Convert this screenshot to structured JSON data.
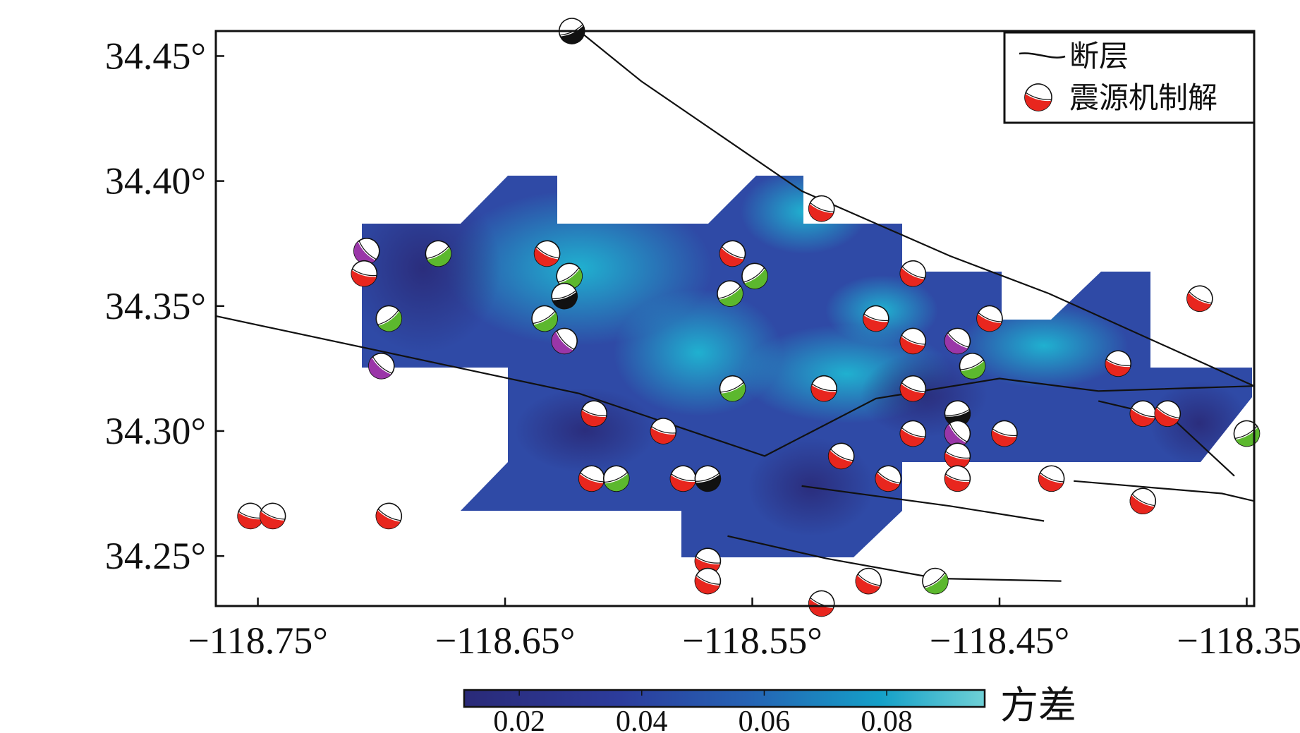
{
  "map": {
    "x_ticks": [
      {
        "label": "−118.75°",
        "value": -118.75
      },
      {
        "label": "−118.65°",
        "value": -118.65
      },
      {
        "label": "−118.55°",
        "value": -118.55
      },
      {
        "label": "−118.45°",
        "value": -118.45
      },
      {
        "label": "−118.35°",
        "value": -118.35
      }
    ],
    "y_ticks": [
      {
        "label": "34.45°",
        "value": 34.45
      },
      {
        "label": "34.40°",
        "value": 34.4
      },
      {
        "label": "34.35°",
        "value": 34.35
      },
      {
        "label": "34.30°",
        "value": 34.3
      },
      {
        "label": "34.25°",
        "value": 34.25
      }
    ],
    "lon_range": [
      -118.767,
      -118.347
    ],
    "lat_range": [
      34.23,
      34.46
    ],
    "legend": {
      "placement": "top-right",
      "fault_label": "断层",
      "mechanism_label": "震源机制解"
    },
    "colorbar": {
      "title": "方差",
      "ticks": [
        "0.02",
        "0.04",
        "0.06",
        "0.08"
      ],
      "tick_values": [
        0.02,
        0.04,
        0.06,
        0.08
      ],
      "range": [
        0.011,
        0.096
      ],
      "colors": [
        "#2a2a78",
        "#2c3c9c",
        "#2563b4",
        "#14a0c8",
        "#6fd0d6"
      ]
    },
    "region_color": "#2f4aa6",
    "region_light_color": "#18a6cc",
    "region_dark_color": "#2a2a7c",
    "fault_color": "#111111",
    "mechanism_colors": {
      "red": "#e8261e",
      "green": "#5cb82e",
      "purple": "#9a36a8",
      "black": "#111111"
    },
    "faults": [
      [
        [
          -118.62,
          34.46
        ],
        [
          -118.595,
          34.44
        ],
        [
          -118.53,
          34.396
        ],
        [
          -118.47,
          34.37
        ],
        [
          -118.43,
          34.355
        ],
        [
          -118.347,
          34.318
        ]
      ],
      [
        [
          -118.767,
          34.346
        ],
        [
          -118.62,
          34.315
        ],
        [
          -118.545,
          34.29
        ],
        [
          -118.5,
          34.313
        ],
        [
          -118.45,
          34.321
        ],
        [
          -118.41,
          34.316
        ],
        [
          -118.347,
          34.318
        ]
      ],
      [
        [
          -118.41,
          34.312
        ],
        [
          -118.38,
          34.305
        ],
        [
          -118.355,
          34.282
        ]
      ],
      [
        [
          -118.42,
          34.28
        ],
        [
          -118.36,
          34.275
        ],
        [
          -118.347,
          34.272
        ]
      ],
      [
        [
          -118.53,
          34.278
        ],
        [
          -118.47,
          34.27
        ],
        [
          -118.432,
          34.264
        ]
      ],
      [
        [
          -118.56,
          34.258
        ],
        [
          -118.52,
          34.249
        ],
        [
          -118.475,
          34.241
        ],
        [
          -118.425,
          34.24
        ]
      ]
    ],
    "mechanisms": [
      {
        "lon": -118.623,
        "lat": 34.46,
        "type": "black"
      },
      {
        "lon": -118.522,
        "lat": 34.389,
        "type": "red"
      },
      {
        "lon": -118.706,
        "lat": 34.372,
        "type": "purple"
      },
      {
        "lon": -118.707,
        "lat": 34.363,
        "type": "red"
      },
      {
        "lon": -118.677,
        "lat": 34.371,
        "type": "green"
      },
      {
        "lon": -118.633,
        "lat": 34.371,
        "type": "red"
      },
      {
        "lon": -118.624,
        "lat": 34.362,
        "type": "green"
      },
      {
        "lon": -118.626,
        "lat": 34.354,
        "type": "black"
      },
      {
        "lon": -118.558,
        "lat": 34.371,
        "type": "red"
      },
      {
        "lon": -118.549,
        "lat": 34.362,
        "type": "green"
      },
      {
        "lon": -118.559,
        "lat": 34.355,
        "type": "green"
      },
      {
        "lon": -118.485,
        "lat": 34.363,
        "type": "red"
      },
      {
        "lon": -118.5,
        "lat": 34.345,
        "type": "red"
      },
      {
        "lon": -118.454,
        "lat": 34.345,
        "type": "red"
      },
      {
        "lon": -118.369,
        "lat": 34.353,
        "type": "red"
      },
      {
        "lon": -118.697,
        "lat": 34.345,
        "type": "green"
      },
      {
        "lon": -118.634,
        "lat": 34.345,
        "type": "green"
      },
      {
        "lon": -118.626,
        "lat": 34.336,
        "type": "purple"
      },
      {
        "lon": -118.467,
        "lat": 34.336,
        "type": "purple"
      },
      {
        "lon": -118.485,
        "lat": 34.336,
        "type": "red"
      },
      {
        "lon": -118.461,
        "lat": 34.326,
        "type": "green"
      },
      {
        "lon": -118.402,
        "lat": 34.327,
        "type": "red"
      },
      {
        "lon": -118.7,
        "lat": 34.326,
        "type": "purple"
      },
      {
        "lon": -118.558,
        "lat": 34.317,
        "type": "green"
      },
      {
        "lon": -118.521,
        "lat": 34.317,
        "type": "red"
      },
      {
        "lon": -118.485,
        "lat": 34.317,
        "type": "red"
      },
      {
        "lon": -118.467,
        "lat": 34.307,
        "type": "black"
      },
      {
        "lon": -118.614,
        "lat": 34.307,
        "type": "red"
      },
      {
        "lon": -118.392,
        "lat": 34.307,
        "type": "red"
      },
      {
        "lon": -118.382,
        "lat": 34.307,
        "type": "red"
      },
      {
        "lon": -118.586,
        "lat": 34.3,
        "type": "red"
      },
      {
        "lon": -118.485,
        "lat": 34.299,
        "type": "red"
      },
      {
        "lon": -118.467,
        "lat": 34.299,
        "type": "purple"
      },
      {
        "lon": -118.448,
        "lat": 34.299,
        "type": "red"
      },
      {
        "lon": -118.35,
        "lat": 34.299,
        "type": "green"
      },
      {
        "lon": -118.514,
        "lat": 34.29,
        "type": "red"
      },
      {
        "lon": -118.467,
        "lat": 34.29,
        "type": "red"
      },
      {
        "lon": -118.615,
        "lat": 34.281,
        "type": "red"
      },
      {
        "lon": -118.605,
        "lat": 34.281,
        "type": "green"
      },
      {
        "lon": -118.578,
        "lat": 34.281,
        "type": "red"
      },
      {
        "lon": -118.568,
        "lat": 34.281,
        "type": "black"
      },
      {
        "lon": -118.495,
        "lat": 34.281,
        "type": "red"
      },
      {
        "lon": -118.467,
        "lat": 34.281,
        "type": "red"
      },
      {
        "lon": -118.429,
        "lat": 34.281,
        "type": "red"
      },
      {
        "lon": -118.392,
        "lat": 34.272,
        "type": "red"
      },
      {
        "lon": -118.753,
        "lat": 34.266,
        "type": "red"
      },
      {
        "lon": -118.744,
        "lat": 34.266,
        "type": "red"
      },
      {
        "lon": -118.697,
        "lat": 34.266,
        "type": "red"
      },
      {
        "lon": -118.568,
        "lat": 34.248,
        "type": "red"
      },
      {
        "lon": -118.568,
        "lat": 34.24,
        "type": "red"
      },
      {
        "lon": -118.503,
        "lat": 34.24,
        "type": "red"
      },
      {
        "lon": -118.476,
        "lat": 34.24,
        "type": "green"
      },
      {
        "lon": -118.522,
        "lat": 34.231,
        "type": "red"
      }
    ]
  }
}
